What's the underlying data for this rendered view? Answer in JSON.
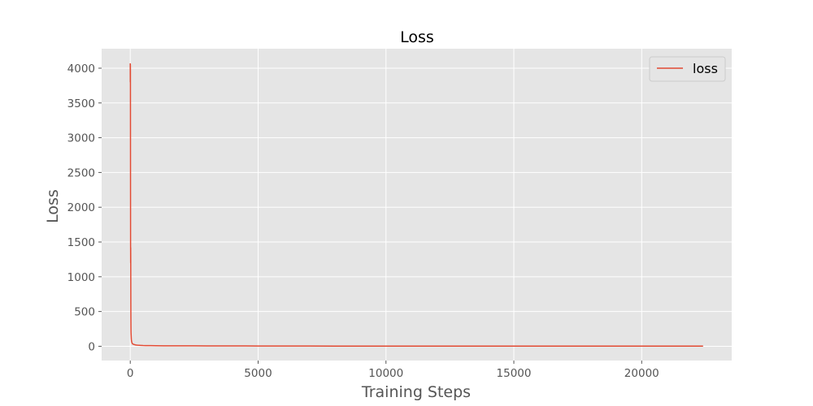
{
  "chart_data": {
    "type": "line",
    "title": "Loss",
    "xlabel": "Training Steps",
    "ylabel": "Loss",
    "xlim": [
      -1120,
      23520
    ],
    "ylim": [
      -205,
      4280
    ],
    "xticks": [
      0,
      5000,
      10000,
      15000,
      20000
    ],
    "yticks": [
      0,
      500,
      1000,
      1500,
      2000,
      2500,
      3000,
      3500,
      4000
    ],
    "grid": true,
    "legend": {
      "position": "top-right",
      "entries": [
        "loss"
      ]
    },
    "colors": {
      "background": "#e5e5e5",
      "grid": "#ffffff",
      "line": "#e24a33",
      "tick": "#555555"
    },
    "series": [
      {
        "name": "loss",
        "x": [
          0,
          2,
          4,
          6,
          8,
          10,
          12,
          14,
          16,
          18,
          20,
          22,
          24,
          26,
          28,
          30,
          35,
          40,
          45,
          50,
          60,
          70,
          80,
          100,
          130,
          160,
          200,
          250,
          300,
          400,
          500,
          600,
          800,
          1000,
          1300,
          1600,
          2000,
          2500,
          3000,
          3500,
          4000,
          4500,
          5000,
          5500,
          6000,
          6500,
          7000,
          8000,
          9000,
          10000,
          11000,
          12000,
          13000,
          14000,
          15000,
          16000,
          17000,
          18000,
          19000,
          20000,
          21000,
          22000,
          22400
        ],
        "values": [
          4070,
          3800,
          4050,
          3950,
          3100,
          2200,
          1450,
          1200,
          1420,
          1250,
          900,
          600,
          420,
          300,
          230,
          190,
          150,
          110,
          90,
          75,
          60,
          48,
          40,
          32,
          28,
          24,
          20,
          17,
          15,
          13,
          11,
          10,
          9,
          8,
          7,
          7,
          6,
          6,
          5,
          5,
          5,
          5,
          4,
          4,
          4,
          4,
          4,
          3,
          3,
          3,
          3,
          3,
          3,
          3,
          3,
          3,
          3,
          3,
          3,
          3,
          3,
          3,
          3
        ]
      }
    ]
  }
}
